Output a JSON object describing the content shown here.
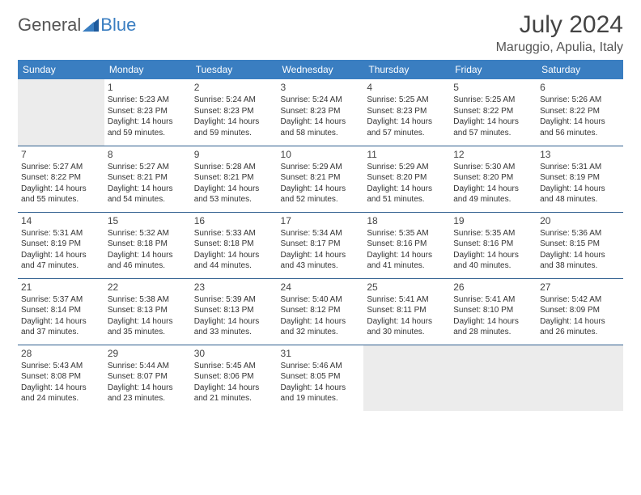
{
  "logo": {
    "text1": "General",
    "text2": "Blue"
  },
  "title": "July 2024",
  "location": "Maruggio, Apulia, Italy",
  "colors": {
    "header_bg": "#3a7ec1",
    "header_text": "#ffffff",
    "row_border": "#2f5e8e",
    "empty_bg": "#ececec",
    "body_text": "#333333",
    "title_text": "#444444",
    "page_bg": "#ffffff"
  },
  "weekdays": [
    "Sunday",
    "Monday",
    "Tuesday",
    "Wednesday",
    "Thursday",
    "Friday",
    "Saturday"
  ],
  "first_weekday_index": 1,
  "days": [
    {
      "n": 1,
      "sunrise": "5:23 AM",
      "sunset": "8:23 PM",
      "daylight": "14 hours and 59 minutes."
    },
    {
      "n": 2,
      "sunrise": "5:24 AM",
      "sunset": "8:23 PM",
      "daylight": "14 hours and 59 minutes."
    },
    {
      "n": 3,
      "sunrise": "5:24 AM",
      "sunset": "8:23 PM",
      "daylight": "14 hours and 58 minutes."
    },
    {
      "n": 4,
      "sunrise": "5:25 AM",
      "sunset": "8:23 PM",
      "daylight": "14 hours and 57 minutes."
    },
    {
      "n": 5,
      "sunrise": "5:25 AM",
      "sunset": "8:22 PM",
      "daylight": "14 hours and 57 minutes."
    },
    {
      "n": 6,
      "sunrise": "5:26 AM",
      "sunset": "8:22 PM",
      "daylight": "14 hours and 56 minutes."
    },
    {
      "n": 7,
      "sunrise": "5:27 AM",
      "sunset": "8:22 PM",
      "daylight": "14 hours and 55 minutes."
    },
    {
      "n": 8,
      "sunrise": "5:27 AM",
      "sunset": "8:21 PM",
      "daylight": "14 hours and 54 minutes."
    },
    {
      "n": 9,
      "sunrise": "5:28 AM",
      "sunset": "8:21 PM",
      "daylight": "14 hours and 53 minutes."
    },
    {
      "n": 10,
      "sunrise": "5:29 AM",
      "sunset": "8:21 PM",
      "daylight": "14 hours and 52 minutes."
    },
    {
      "n": 11,
      "sunrise": "5:29 AM",
      "sunset": "8:20 PM",
      "daylight": "14 hours and 51 minutes."
    },
    {
      "n": 12,
      "sunrise": "5:30 AM",
      "sunset": "8:20 PM",
      "daylight": "14 hours and 49 minutes."
    },
    {
      "n": 13,
      "sunrise": "5:31 AM",
      "sunset": "8:19 PM",
      "daylight": "14 hours and 48 minutes."
    },
    {
      "n": 14,
      "sunrise": "5:31 AM",
      "sunset": "8:19 PM",
      "daylight": "14 hours and 47 minutes."
    },
    {
      "n": 15,
      "sunrise": "5:32 AM",
      "sunset": "8:18 PM",
      "daylight": "14 hours and 46 minutes."
    },
    {
      "n": 16,
      "sunrise": "5:33 AM",
      "sunset": "8:18 PM",
      "daylight": "14 hours and 44 minutes."
    },
    {
      "n": 17,
      "sunrise": "5:34 AM",
      "sunset": "8:17 PM",
      "daylight": "14 hours and 43 minutes."
    },
    {
      "n": 18,
      "sunrise": "5:35 AM",
      "sunset": "8:16 PM",
      "daylight": "14 hours and 41 minutes."
    },
    {
      "n": 19,
      "sunrise": "5:35 AM",
      "sunset": "8:16 PM",
      "daylight": "14 hours and 40 minutes."
    },
    {
      "n": 20,
      "sunrise": "5:36 AM",
      "sunset": "8:15 PM",
      "daylight": "14 hours and 38 minutes."
    },
    {
      "n": 21,
      "sunrise": "5:37 AM",
      "sunset": "8:14 PM",
      "daylight": "14 hours and 37 minutes."
    },
    {
      "n": 22,
      "sunrise": "5:38 AM",
      "sunset": "8:13 PM",
      "daylight": "14 hours and 35 minutes."
    },
    {
      "n": 23,
      "sunrise": "5:39 AM",
      "sunset": "8:13 PM",
      "daylight": "14 hours and 33 minutes."
    },
    {
      "n": 24,
      "sunrise": "5:40 AM",
      "sunset": "8:12 PM",
      "daylight": "14 hours and 32 minutes."
    },
    {
      "n": 25,
      "sunrise": "5:41 AM",
      "sunset": "8:11 PM",
      "daylight": "14 hours and 30 minutes."
    },
    {
      "n": 26,
      "sunrise": "5:41 AM",
      "sunset": "8:10 PM",
      "daylight": "14 hours and 28 minutes."
    },
    {
      "n": 27,
      "sunrise": "5:42 AM",
      "sunset": "8:09 PM",
      "daylight": "14 hours and 26 minutes."
    },
    {
      "n": 28,
      "sunrise": "5:43 AM",
      "sunset": "8:08 PM",
      "daylight": "14 hours and 24 minutes."
    },
    {
      "n": 29,
      "sunrise": "5:44 AM",
      "sunset": "8:07 PM",
      "daylight": "14 hours and 23 minutes."
    },
    {
      "n": 30,
      "sunrise": "5:45 AM",
      "sunset": "8:06 PM",
      "daylight": "14 hours and 21 minutes."
    },
    {
      "n": 31,
      "sunrise": "5:46 AM",
      "sunset": "8:05 PM",
      "daylight": "14 hours and 19 minutes."
    }
  ],
  "labels": {
    "sunrise": "Sunrise:",
    "sunset": "Sunset:",
    "daylight": "Daylight:"
  }
}
